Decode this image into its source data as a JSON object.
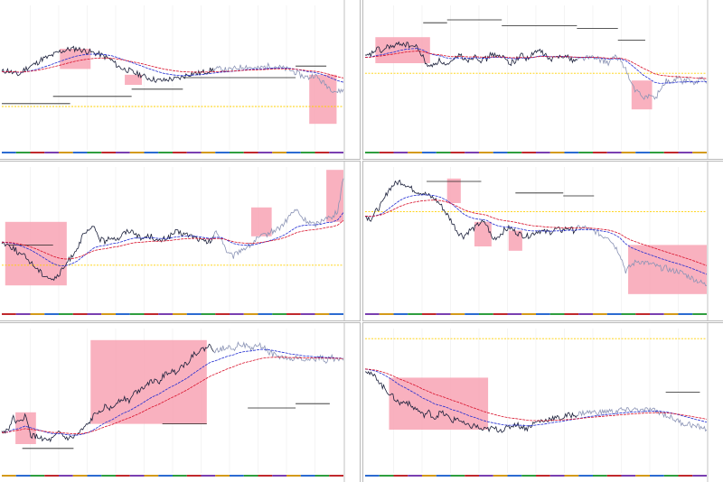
{
  "colors": {
    "highlight": "#f8a8b8",
    "price": "#1a1f3a",
    "price_light": "#8a93b5",
    "ma_fast": "#1f2bd1",
    "ma_slow": "#d8102a",
    "level": "#ffd000",
    "step": "#222222",
    "grid": "#ececec"
  },
  "chart_data": [
    {
      "type": "line",
      "title": "",
      "xlabel": "",
      "ylabel": "",
      "ylim": [
        0,
        100
      ],
      "grid": true,
      "legend": "none",
      "series": [
        {
          "values": [
            54,
            55,
            53,
            52,
            56,
            58,
            60,
            63,
            64,
            66,
            68,
            69,
            70,
            70,
            69,
            68,
            67,
            66,
            64,
            62,
            58,
            56,
            55,
            53,
            52,
            50,
            49,
            48,
            48,
            49,
            49,
            50,
            52,
            53,
            53,
            54,
            55,
            56,
            56,
            55,
            56,
            57,
            58,
            57,
            56,
            57,
            58,
            58,
            57,
            56,
            55,
            53,
            51,
            50,
            52,
            48,
            45,
            42,
            40,
            42
          ]
        }
      ],
      "highlights": [
        {
          "x0": 0.17,
          "x1": 0.26,
          "y0": 56,
          "y1": 70
        },
        {
          "x0": 0.36,
          "x1": 0.41,
          "y0": 45,
          "y1": 52
        },
        {
          "x0": 0.9,
          "x1": 0.98,
          "y0": 18,
          "y1": 52
        }
      ],
      "hline": 30,
      "steps": [
        [
          0.0,
          0.2,
          32
        ],
        [
          0.15,
          0.38,
          37
        ],
        [
          0.38,
          0.53,
          42
        ],
        [
          0.53,
          0.86,
          50
        ],
        [
          0.86,
          0.95,
          58
        ]
      ]
    },
    {
      "type": "line",
      "title": "",
      "xlabel": "",
      "ylabel": "",
      "ylim": [
        0,
        100
      ],
      "grid": true,
      "legend": "none",
      "series": [
        {
          "values": [
            64,
            66,
            70,
            68,
            72,
            71,
            74,
            73,
            72,
            71,
            64,
            57,
            60,
            62,
            58,
            60,
            66,
            64,
            62,
            66,
            62,
            63,
            67,
            64,
            64,
            60,
            62,
            66,
            63,
            66,
            69,
            66,
            62,
            64,
            66,
            64,
            62,
            63,
            64,
            64,
            63,
            62,
            60,
            64,
            63,
            56,
            45,
            40,
            36,
            38,
            35,
            42,
            48,
            46,
            50,
            47,
            49,
            45,
            50,
            46
          ]
        }
      ],
      "highlights": [
        {
          "x0": 0.03,
          "x1": 0.19,
          "y0": 60,
          "y1": 78
        },
        {
          "x0": 0.78,
          "x1": 0.84,
          "y0": 28,
          "y1": 48
        }
      ],
      "hline": 53,
      "steps": [
        [
          0.17,
          0.24,
          88
        ],
        [
          0.24,
          0.4,
          90
        ],
        [
          0.4,
          0.62,
          86
        ],
        [
          0.62,
          0.74,
          84
        ],
        [
          0.74,
          0.82,
          76
        ]
      ]
    },
    {
      "type": "line",
      "title": "",
      "xlabel": "",
      "ylabel": "",
      "ylim": [
        0,
        100
      ],
      "grid": true,
      "legend": "none",
      "series": [
        {
          "values": [
            48,
            46,
            44,
            40,
            38,
            34,
            30,
            26,
            24,
            22,
            26,
            32,
            38,
            44,
            52,
            56,
            58,
            50,
            48,
            52,
            50,
            54,
            56,
            55,
            50,
            52,
            52,
            48,
            50,
            52,
            55,
            54,
            53,
            52,
            50,
            48,
            48,
            55,
            50,
            40,
            38,
            42,
            44,
            46,
            50,
            52,
            54,
            56,
            58,
            62,
            68,
            70,
            64,
            62,
            60,
            62,
            66,
            64,
            70,
            92
          ]
        }
      ],
      "highlights": [
        {
          "x0": 0.01,
          "x1": 0.19,
          "y0": 18,
          "y1": 62
        },
        {
          "x0": 0.73,
          "x1": 0.79,
          "y0": 52,
          "y1": 72
        },
        {
          "x0": 0.95,
          "x1": 1.0,
          "y0": 62,
          "y1": 98
        }
      ],
      "hline": 32,
      "steps": [
        [
          0.02,
          0.15,
          46
        ]
      ]
    },
    {
      "type": "line",
      "title": "",
      "xlabel": "",
      "ylabel": "",
      "ylim": [
        0,
        100
      ],
      "grid": true,
      "legend": "none",
      "series": [
        {
          "values": [
            66,
            64,
            70,
            75,
            84,
            88,
            90,
            88,
            85,
            83,
            82,
            80,
            78,
            74,
            68,
            62,
            55,
            52,
            56,
            58,
            62,
            60,
            50,
            52,
            56,
            58,
            55,
            53,
            52,
            54,
            56,
            55,
            55,
            57,
            56,
            58,
            56,
            58,
            58,
            56,
            55,
            52,
            52,
            46,
            40,
            28,
            32,
            35,
            34,
            33,
            32,
            30,
            30,
            28,
            28,
            26,
            24,
            22,
            20,
            18
          ]
        }
      ],
      "highlights": [
        {
          "x0": 0.24,
          "x1": 0.28,
          "y0": 75,
          "y1": 92
        },
        {
          "x0": 0.32,
          "x1": 0.37,
          "y0": 45,
          "y1": 62
        },
        {
          "x0": 0.42,
          "x1": 0.46,
          "y0": 42,
          "y1": 56
        },
        {
          "x0": 0.77,
          "x1": 1.0,
          "y0": 12,
          "y1": 46
        }
      ],
      "hline": 69,
      "steps": [
        [
          0.18,
          0.34,
          90
        ],
        [
          0.44,
          0.58,
          82
        ],
        [
          0.58,
          0.67,
          80
        ]
      ]
    },
    {
      "type": "line",
      "title": "",
      "xlabel": "",
      "ylabel": "",
      "ylim": [
        0,
        100
      ],
      "grid": true,
      "legend": "none",
      "series": [
        {
          "values": [
            28,
            30,
            38,
            34,
            40,
            26,
            25,
            24,
            22,
            24,
            28,
            24,
            24,
            26,
            30,
            34,
            40,
            44,
            46,
            44,
            50,
            52,
            50,
            56,
            58,
            62,
            64,
            62,
            68,
            70,
            70,
            74,
            76,
            82,
            84,
            86,
            88,
            84,
            86,
            88,
            86,
            90,
            88,
            86,
            88,
            88,
            84,
            82,
            80,
            80,
            78,
            80,
            78,
            80,
            78,
            80,
            78,
            80,
            78,
            78
          ]
        }
      ],
      "highlights": [
        {
          "x0": 0.04,
          "x1": 0.1,
          "y0": 20,
          "y1": 42
        },
        {
          "x0": 0.26,
          "x1": 0.6,
          "y0": 34,
          "y1": 92
        }
      ],
      "hline": null,
      "steps": [
        [
          0.06,
          0.21,
          17
        ],
        [
          0.47,
          0.6,
          34
        ],
        [
          0.72,
          0.86,
          45
        ],
        [
          0.86,
          0.96,
          48
        ]
      ]
    },
    {
      "type": "line",
      "title": "",
      "xlabel": "",
      "ylabel": "",
      "ylim": [
        0,
        100
      ],
      "grid": true,
      "legend": "none",
      "series": [
        {
          "values": [
            72,
            68,
            66,
            60,
            56,
            52,
            48,
            50,
            46,
            44,
            40,
            42,
            38,
            42,
            40,
            36,
            38,
            34,
            32,
            33,
            30,
            30,
            31,
            30,
            30,
            32,
            34,
            32,
            31,
            34,
            36,
            36,
            38,
            38,
            38,
            40,
            40,
            41,
            42,
            42,
            42,
            42,
            43,
            42,
            44,
            43,
            44,
            44,
            43,
            44,
            43,
            42,
            40,
            38,
            36,
            34,
            34,
            32,
            32,
            30
          ]
        }
      ],
      "highlights": [
        {
          "x0": 0.07,
          "x1": 0.36,
          "y0": 30,
          "y1": 66
        }
      ],
      "hline": 93,
      "steps": [
        [
          0.88,
          0.98,
          56
        ]
      ]
    }
  ]
}
